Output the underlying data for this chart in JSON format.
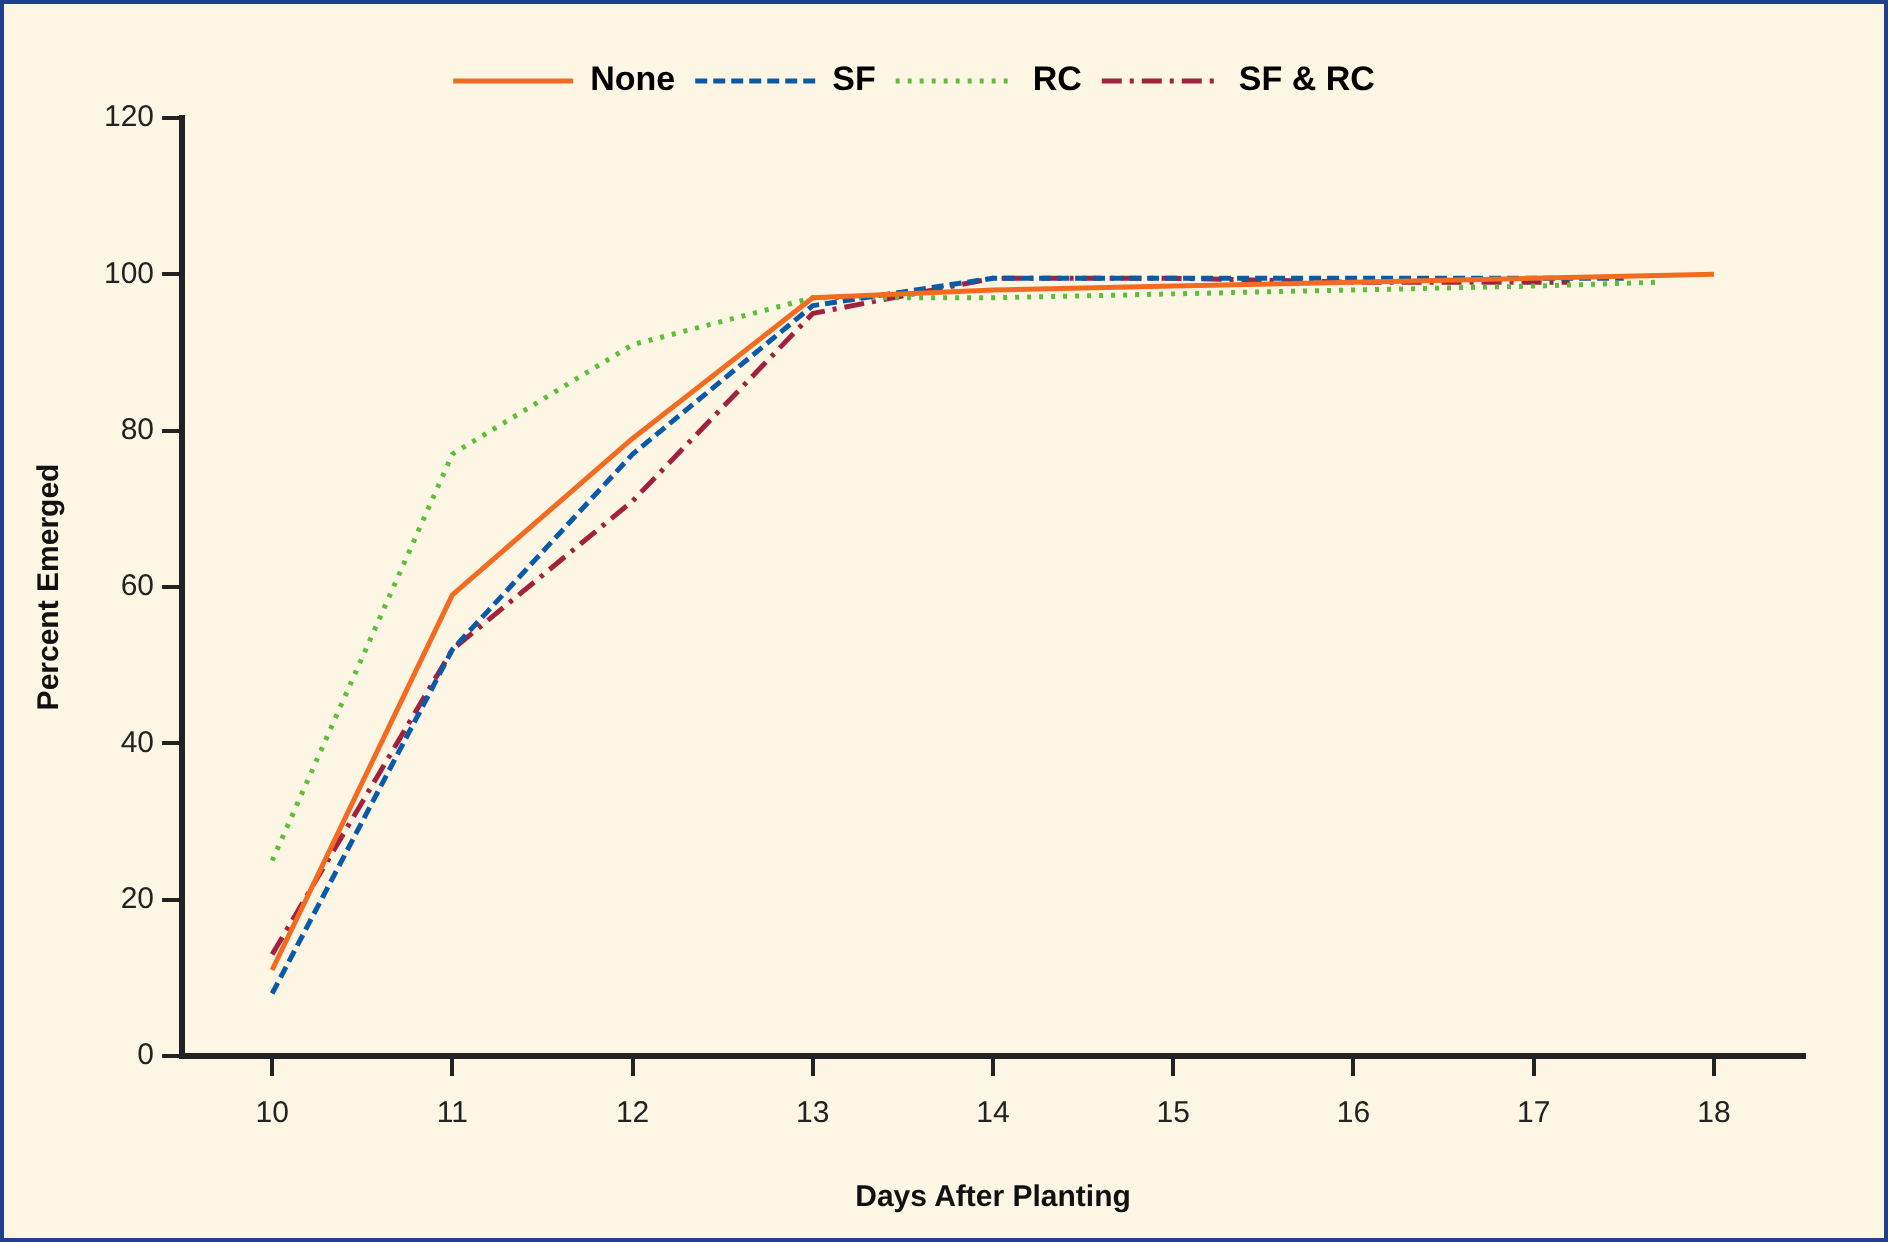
{
  "chart_data": {
    "type": "line",
    "xlabel": "Days After Planting",
    "ylabel": "Percent Emerged",
    "xlim": [
      9.5,
      18.5
    ],
    "xticks": [
      10,
      11,
      12,
      13,
      14,
      15,
      16,
      17,
      18
    ],
    "ylim": [
      0,
      120
    ],
    "yticks": [
      0,
      20,
      40,
      60,
      80,
      100,
      120
    ],
    "grid": false,
    "legend": "top",
    "marker": "none",
    "series": [
      {
        "name": "None",
        "color": "#f26b21",
        "line_style": "solid",
        "x": [
          10,
          11,
          12,
          13,
          14,
          15,
          16,
          17,
          18
        ],
        "values": [
          11,
          59,
          79,
          97,
          98,
          98.5,
          99,
          99.5,
          100
        ]
      },
      {
        "name": "SF",
        "color": "#0a5aa8",
        "line_style": "dashed",
        "x": [
          10,
          11,
          12,
          13,
          14,
          15,
          16,
          17,
          17.5
        ],
        "values": [
          8,
          52,
          77,
          96,
          99.5,
          99.5,
          99.5,
          99.5,
          99.5
        ]
      },
      {
        "name": "RC",
        "color": "#5cbf3a",
        "line_style": "dotted",
        "x": [
          10,
          11,
          12,
          13,
          14,
          15,
          16,
          17,
          17.7
        ],
        "values": [
          25,
          77,
          91,
          97,
          97,
          97.5,
          98,
          98.5,
          99
        ]
      },
      {
        "name": "SF & RC",
        "color": "#a3203f",
        "line_style": "dashdot",
        "x": [
          10,
          11,
          12,
          13,
          14,
          15,
          16,
          17,
          17.2
        ],
        "values": [
          13,
          52,
          71,
          95,
          99.5,
          99.5,
          99,
          99,
          99
        ]
      }
    ]
  }
}
